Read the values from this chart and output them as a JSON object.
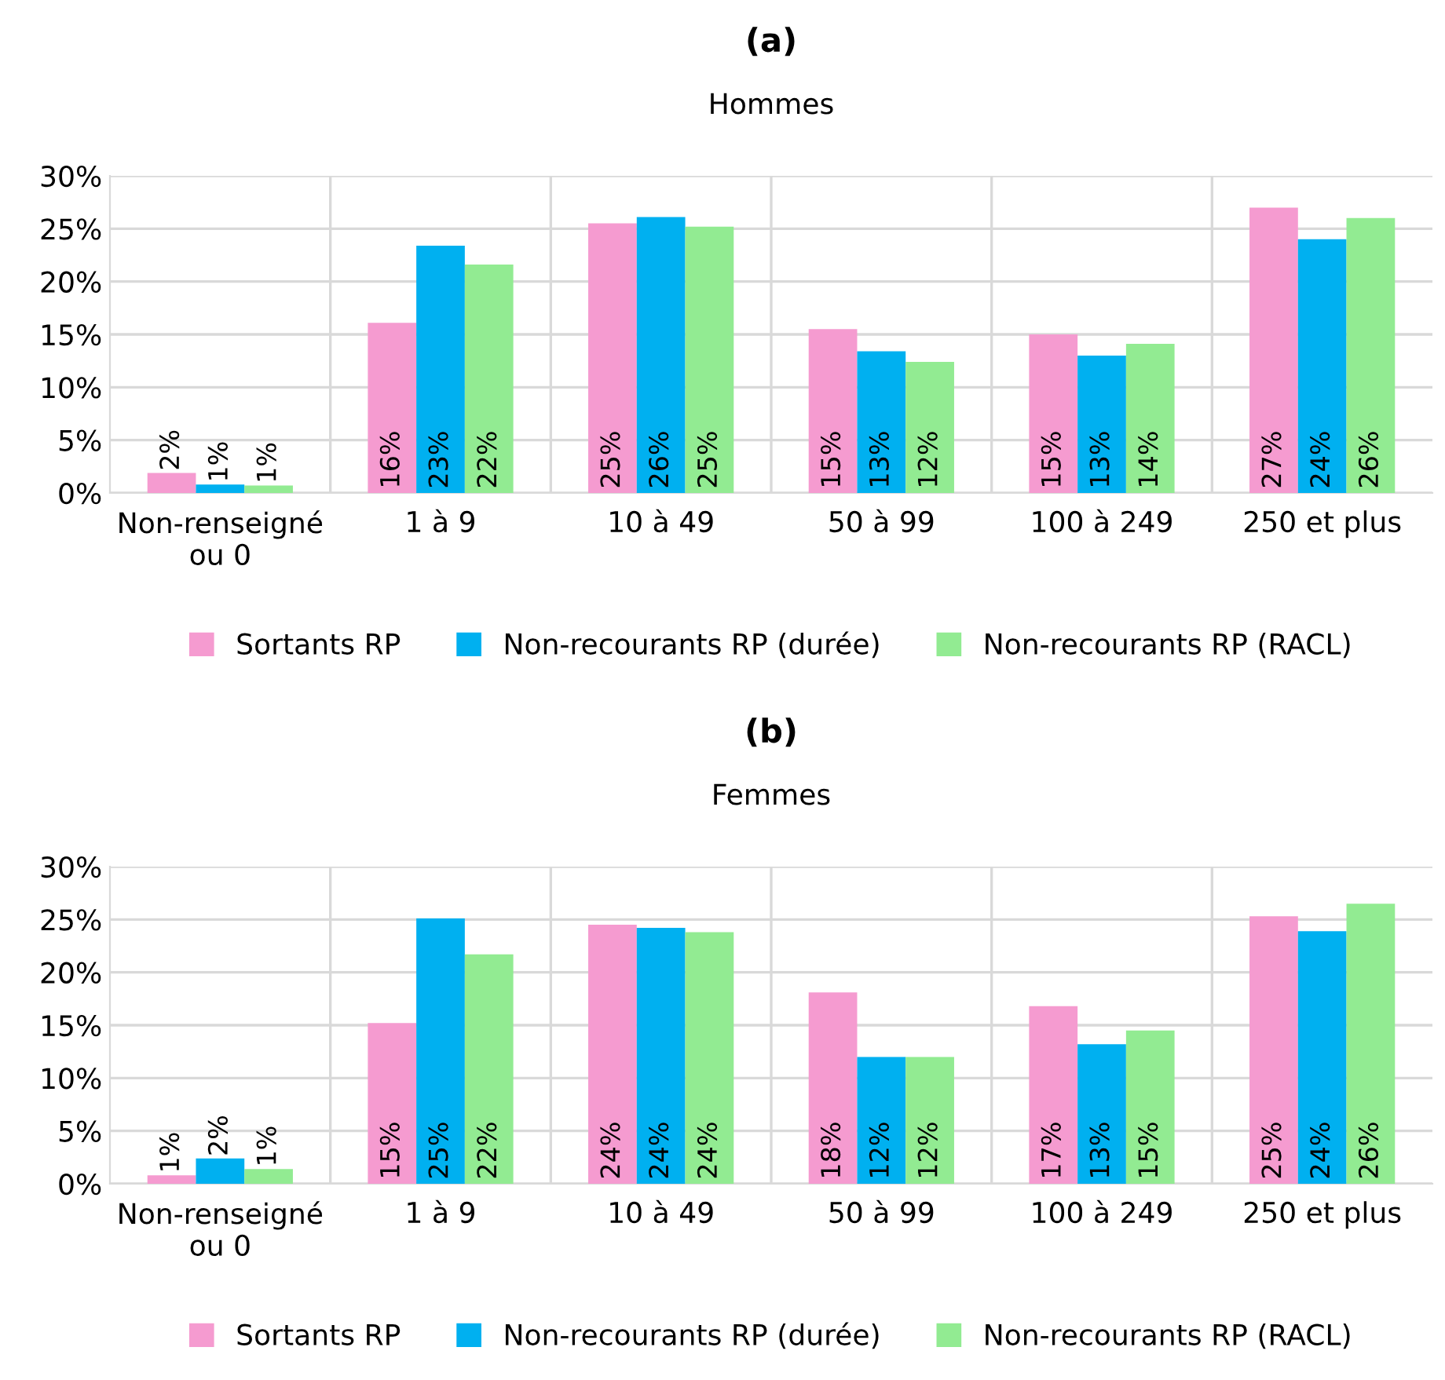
{
  "chart_data": [
    {
      "type": "bar",
      "title": "(a)",
      "subtitle": "Hommes",
      "categories": [
        "Non-renseigné\nou 0",
        "1 à 9",
        "10 à 49",
        "50 à 99",
        "100 à 249",
        "250 et plus"
      ],
      "series": [
        {
          "name": "Sortants RP",
          "color": "#f59bd0",
          "values": [
            1.9,
            16.1,
            25.5,
            15.5,
            15.0,
            27.0
          ],
          "value_labels": [
            "2%",
            "16%",
            "25%",
            "15%",
            "15%",
            "27%"
          ]
        },
        {
          "name": "Non-recourants RP (durée)",
          "color": "#00b0f0",
          "values": [
            0.8,
            23.4,
            26.1,
            13.4,
            13.0,
            24.0
          ],
          "value_labels": [
            "1%",
            "23%",
            "26%",
            "13%",
            "13%",
            "24%"
          ]
        },
        {
          "name": "Non-recourants RP (RACL)",
          "color": "#92eb92",
          "values": [
            0.7,
            21.6,
            25.2,
            12.4,
            14.1,
            26.0
          ],
          "value_labels": [
            "1%",
            "22%",
            "25%",
            "12%",
            "14%",
            "26%"
          ]
        }
      ],
      "ylim": [
        0,
        30
      ],
      "yticks": [
        {
          "value": 0,
          "label": "0%"
        },
        {
          "value": 5,
          "label": "5%"
        },
        {
          "value": 10,
          "label": "10%"
        },
        {
          "value": 15,
          "label": "15%"
        },
        {
          "value": 20,
          "label": "20%"
        },
        {
          "value": 25,
          "label": "25%"
        },
        {
          "value": 30,
          "label": "30%"
        }
      ],
      "grid": true,
      "legend": "bottom"
    },
    {
      "type": "bar",
      "title": "(b)",
      "subtitle": "Femmes",
      "categories": [
        "Non-renseigné\nou 0",
        "1 à 9",
        "10 à 49",
        "50 à 99",
        "100 à 249",
        "250 et plus"
      ],
      "series": [
        {
          "name": "Sortants RP",
          "color": "#f59bd0",
          "values": [
            0.8,
            15.2,
            24.5,
            18.1,
            16.8,
            25.3
          ],
          "value_labels": [
            "1%",
            "15%",
            "24%",
            "18%",
            "17%",
            "25%"
          ]
        },
        {
          "name": "Non-recourants RP (durée)",
          "color": "#00b0f0",
          "values": [
            2.4,
            25.1,
            24.2,
            12.0,
            13.2,
            23.9
          ],
          "value_labels": [
            "2%",
            "25%",
            "24%",
            "12%",
            "13%",
            "24%"
          ]
        },
        {
          "name": "Non-recourants RP (RACL)",
          "color": "#92eb92",
          "values": [
            1.4,
            21.7,
            23.8,
            12.0,
            14.5,
            26.5
          ],
          "value_labels": [
            "1%",
            "22%",
            "24%",
            "12%",
            "15%",
            "26%"
          ]
        }
      ],
      "ylim": [
        0,
        30
      ],
      "yticks": [
        {
          "value": 0,
          "label": "0%"
        },
        {
          "value": 5,
          "label": "5%"
        },
        {
          "value": 10,
          "label": "10%"
        },
        {
          "value": 15,
          "label": "15%"
        },
        {
          "value": 20,
          "label": "20%"
        },
        {
          "value": 25,
          "label": "25%"
        },
        {
          "value": 30,
          "label": "30%"
        }
      ],
      "grid": true,
      "legend": "bottom"
    }
  ]
}
